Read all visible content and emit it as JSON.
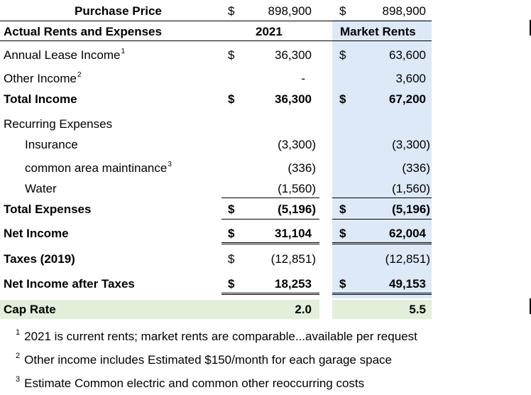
{
  "header": {
    "purchase_price_label": "Purchase Price",
    "purchase_price_2021": "898,900",
    "purchase_price_market": "898,900",
    "dollar": "$"
  },
  "columns": {
    "section_label": "Actual Rents and Expenses",
    "col_2021": "2021",
    "col_market": "Market Rents"
  },
  "rows": {
    "annual_lease": {
      "label": "Annual Lease Income",
      "sup": "1",
      "v2021": "36,300",
      "vmarket": "63,600"
    },
    "other_income": {
      "label": "Other Income",
      "sup": "2",
      "v2021": "-",
      "vmarket": "3,600"
    },
    "total_income": {
      "label": "Total Income",
      "v2021": "36,300",
      "vmarket": "67,200"
    },
    "recurring": {
      "label": "Recurring Expenses"
    },
    "insurance": {
      "label": "Insurance",
      "v2021": "(3,300)",
      "vmarket": "(3,300)"
    },
    "common_area": {
      "label": "common area maintinance",
      "sup": "3",
      "v2021": "(336)",
      "vmarket": "(336)"
    },
    "water": {
      "label": "Water",
      "v2021": "(1,560)",
      "vmarket": "(1,560)"
    },
    "total_expenses": {
      "label": "Total Expenses",
      "v2021": "(5,196)",
      "vmarket": "(5,196)"
    },
    "net_income": {
      "label": "Net Income",
      "v2021": "31,104",
      "vmarket": "62,004"
    },
    "taxes": {
      "label": "Taxes (2019)",
      "v2021": "(12,851)",
      "vmarket": "(12,851)"
    },
    "net_after_taxes": {
      "label": "Net Income after Taxes",
      "v2021": "18,253",
      "vmarket": "49,153"
    },
    "cap_rate": {
      "label": "Cap Rate",
      "v2021": "2.0",
      "vmarket": "5.5"
    }
  },
  "footnotes": [
    {
      "mark": "1",
      "text": "2021 is current rents; market rents are comparable...available per request"
    },
    {
      "mark": "2",
      "text": "Other income includes Estimated $150/month for each garage space"
    },
    {
      "mark": "3",
      "text": "Estimate Common electric and common other reoccurring costs"
    }
  ],
  "colors": {
    "market_band": "#dde9f7",
    "cap_rate_band": "#e2efda"
  }
}
